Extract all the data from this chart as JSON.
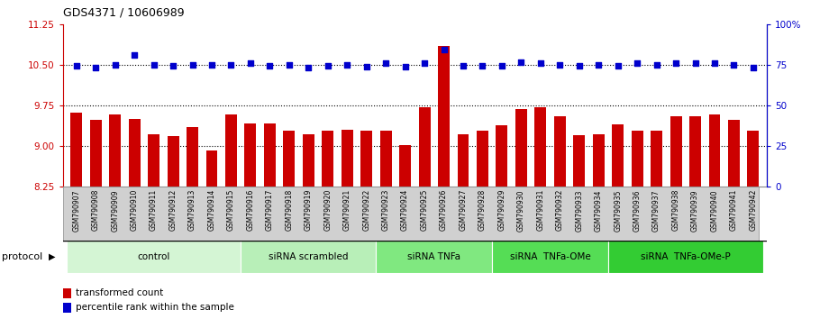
{
  "title": "GDS4371 / 10606989",
  "samples": [
    "GSM790907",
    "GSM790908",
    "GSM790909",
    "GSM790910",
    "GSM790911",
    "GSM790912",
    "GSM790913",
    "GSM790914",
    "GSM790915",
    "GSM790916",
    "GSM790917",
    "GSM790918",
    "GSM790919",
    "GSM790920",
    "GSM790921",
    "GSM790922",
    "GSM790923",
    "GSM790924",
    "GSM790925",
    "GSM790926",
    "GSM790927",
    "GSM790928",
    "GSM790929",
    "GSM790930",
    "GSM790931",
    "GSM790932",
    "GSM790933",
    "GSM790934",
    "GSM790935",
    "GSM790936",
    "GSM790937",
    "GSM790938",
    "GSM790939",
    "GSM790940",
    "GSM790941",
    "GSM790942"
  ],
  "bar_values": [
    9.62,
    9.48,
    9.58,
    9.5,
    9.22,
    9.18,
    9.35,
    8.92,
    9.58,
    9.42,
    9.42,
    9.28,
    9.22,
    9.28,
    9.3,
    9.28,
    9.28,
    9.02,
    9.72,
    10.85,
    9.22,
    9.28,
    9.38,
    9.68,
    9.72,
    9.55,
    9.2,
    9.22,
    9.4,
    9.28,
    9.28,
    9.55,
    9.55,
    9.58,
    9.48,
    9.28
  ],
  "blue_values": [
    10.48,
    10.45,
    10.5,
    10.68,
    10.5,
    10.48,
    10.5,
    10.5,
    10.5,
    10.52,
    10.48,
    10.5,
    10.45,
    10.48,
    10.5,
    10.46,
    10.52,
    10.46,
    10.52,
    10.78,
    10.48,
    10.48,
    10.48,
    10.54,
    10.52,
    10.5,
    10.48,
    10.5,
    10.48,
    10.52,
    10.5,
    10.52,
    10.52,
    10.52,
    10.5,
    10.45
  ],
  "ylim_left": [
    8.25,
    11.25
  ],
  "ylim_right": [
    0,
    100
  ],
  "yticks_left": [
    8.25,
    9.0,
    9.75,
    10.5,
    11.25
  ],
  "yticks_right": [
    0,
    25,
    50,
    75,
    100
  ],
  "bar_color": "#cc0000",
  "dot_color": "#0000cc",
  "group_defs": [
    {
      "label": "control",
      "start": 0,
      "end": 8,
      "color": "#d4f5d4"
    },
    {
      "label": "siRNA scrambled",
      "start": 9,
      "end": 15,
      "color": "#b8efb8"
    },
    {
      "label": "siRNA TNFa",
      "start": 16,
      "end": 21,
      "color": "#80e880"
    },
    {
      "label": "siRNA  TNFa-OMe",
      "start": 22,
      "end": 27,
      "color": "#55dd55"
    },
    {
      "label": "siRNA  TNFa-OMe-P",
      "start": 28,
      "end": 35,
      "color": "#33cc33"
    }
  ],
  "legend_labels": [
    "transformed count",
    "percentile rank within the sample"
  ],
  "legend_colors": [
    "#cc0000",
    "#0000cc"
  ],
  "protocol_label": "protocol",
  "hlines": [
    9.0,
    9.75,
    10.5
  ],
  "tick_bg_color": "#d0d0d0",
  "tick_border_color": "#888888"
}
